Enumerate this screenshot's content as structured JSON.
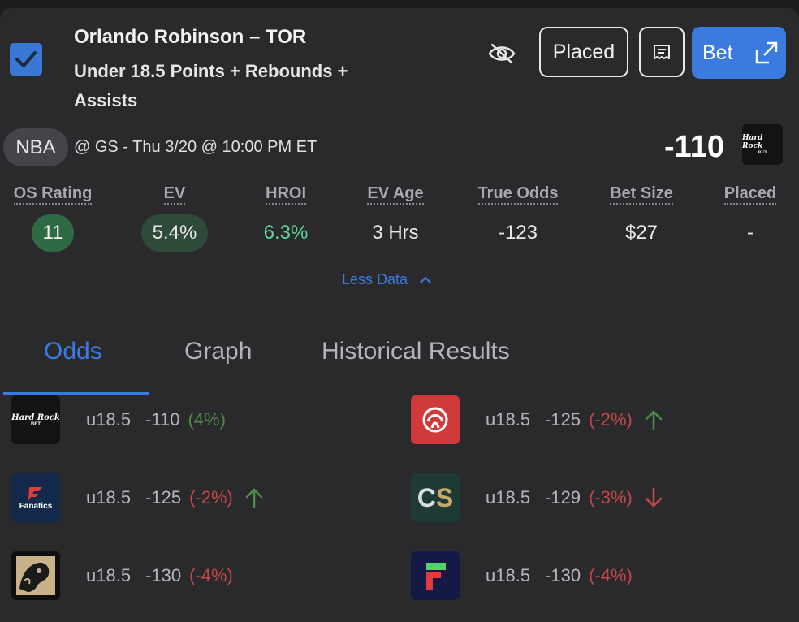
{
  "header": {
    "player": "Orlando Robinson – TOR",
    "market": "Under 18.5 Points + Rebounds + Assists",
    "placed_label": "Placed",
    "bet_label": "Bet"
  },
  "game": {
    "league": "NBA",
    "info": "@ GS - Thu 3/20 @ 10:00 PM ET",
    "odds": "-110",
    "book_logo_text": "Hard Rock",
    "book_logo_sub": "BET"
  },
  "stats": [
    {
      "label": "OS Rating",
      "value": "11"
    },
    {
      "label": "EV",
      "value": "5.4%"
    },
    {
      "label": "HROI",
      "value": "6.3%"
    },
    {
      "label": "EV Age",
      "value": "3 Hrs"
    },
    {
      "label": "True Odds",
      "value": "-123"
    },
    {
      "label": "Bet Size",
      "value": "$27"
    },
    {
      "label": "Placed",
      "value": "-"
    }
  ],
  "less_data_label": "Less Data",
  "tabs": [
    {
      "label": "Odds"
    },
    {
      "label": "Graph"
    },
    {
      "label": "Historical Results"
    }
  ],
  "books": [
    {
      "book": "hard-rock",
      "logo_text": "Hard Rock",
      "logo_sub": "BET",
      "line": "u18.5",
      "odds": "-110",
      "pct": "(4%)",
      "trend": "none"
    },
    {
      "book": "resorts-world",
      "line": "u18.5",
      "odds": "-125",
      "pct": "(-2%)",
      "trend": "up"
    },
    {
      "book": "fanatics",
      "logo_text": "Fanatics",
      "line": "u18.5",
      "odds": "-125",
      "pct": "(-2%)",
      "trend": "up"
    },
    {
      "book": "caesars",
      "logo_text": "CS",
      "line": "u18.5",
      "odds": "-129",
      "pct": "(-3%)",
      "trend": "down"
    },
    {
      "book": "betmgm",
      "line": "u18.5",
      "odds": "-130",
      "pct": "(-4%)",
      "trend": "none"
    },
    {
      "book": "fliff",
      "line": "u18.5",
      "odds": "-130",
      "pct": "(-4%)",
      "trend": "none"
    }
  ],
  "colors": {
    "accent": "#3b7be0",
    "positive": "#4e8a4a",
    "negative": "#c24848",
    "hroi": "#5fd49a"
  }
}
